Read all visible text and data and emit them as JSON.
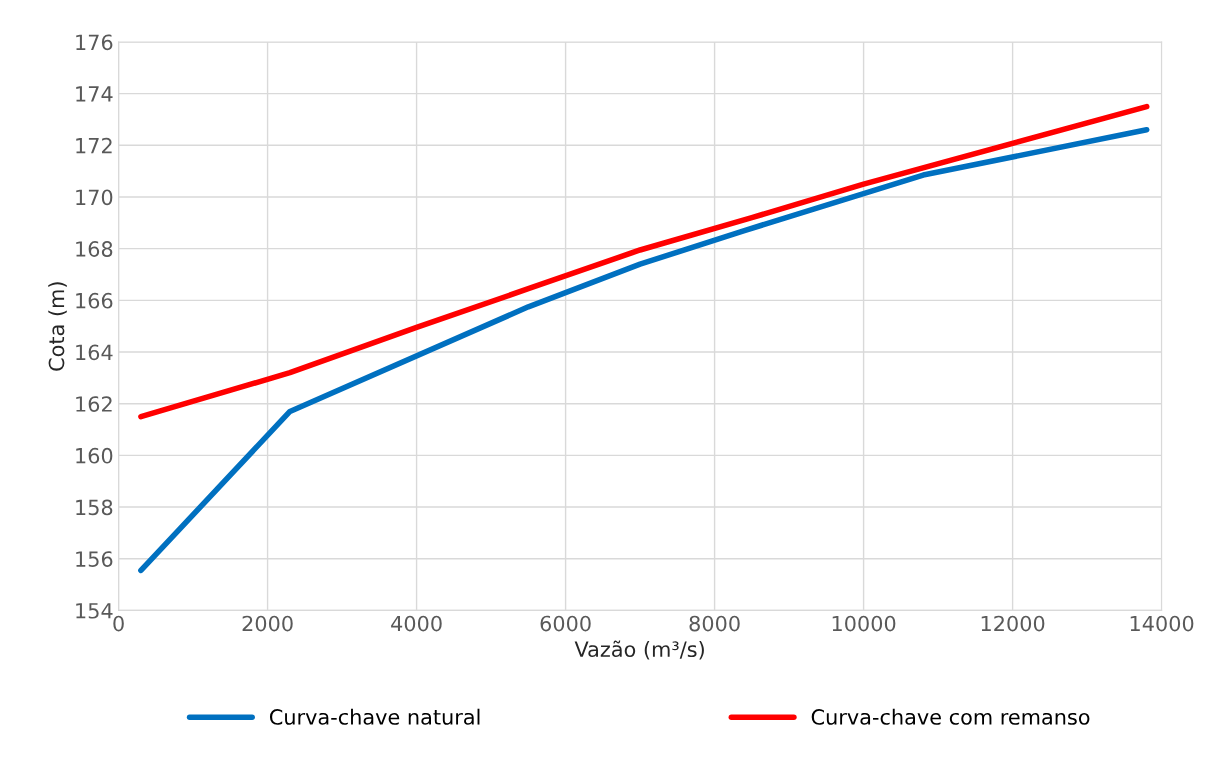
{
  "chart_data": {
    "type": "line",
    "xlabel": "Vazão (m³/s)",
    "ylabel": "Cota (m)",
    "xlim": [
      0,
      14000
    ],
    "xticks": [
      0,
      2000,
      4000,
      6000,
      8000,
      10000,
      12000,
      14000
    ],
    "ylim": [
      154,
      176
    ],
    "yticks": [
      154,
      156,
      158,
      160,
      162,
      164,
      166,
      168,
      170,
      172,
      174,
      176
    ],
    "grid": true,
    "legend": "bottom",
    "marker": "none",
    "line_style": "solid",
    "series": [
      {
        "name": "Curva-chave natural",
        "color": "#0070c0",
        "x": [
          300,
          2300,
          5500,
          7000,
          8400,
          10800,
          13800
        ],
        "values": [
          155.55,
          161.7,
          165.75,
          167.4,
          168.7,
          170.85,
          172.6
        ]
      },
      {
        "name": "Curva-chave com remanso",
        "color": "#ff0000",
        "x": [
          300,
          2300,
          4000,
          5500,
          7000,
          8500,
          10000,
          13800
        ],
        "values": [
          161.5,
          163.2,
          164.95,
          166.45,
          167.95,
          169.2,
          170.5,
          173.5
        ]
      }
    ]
  }
}
